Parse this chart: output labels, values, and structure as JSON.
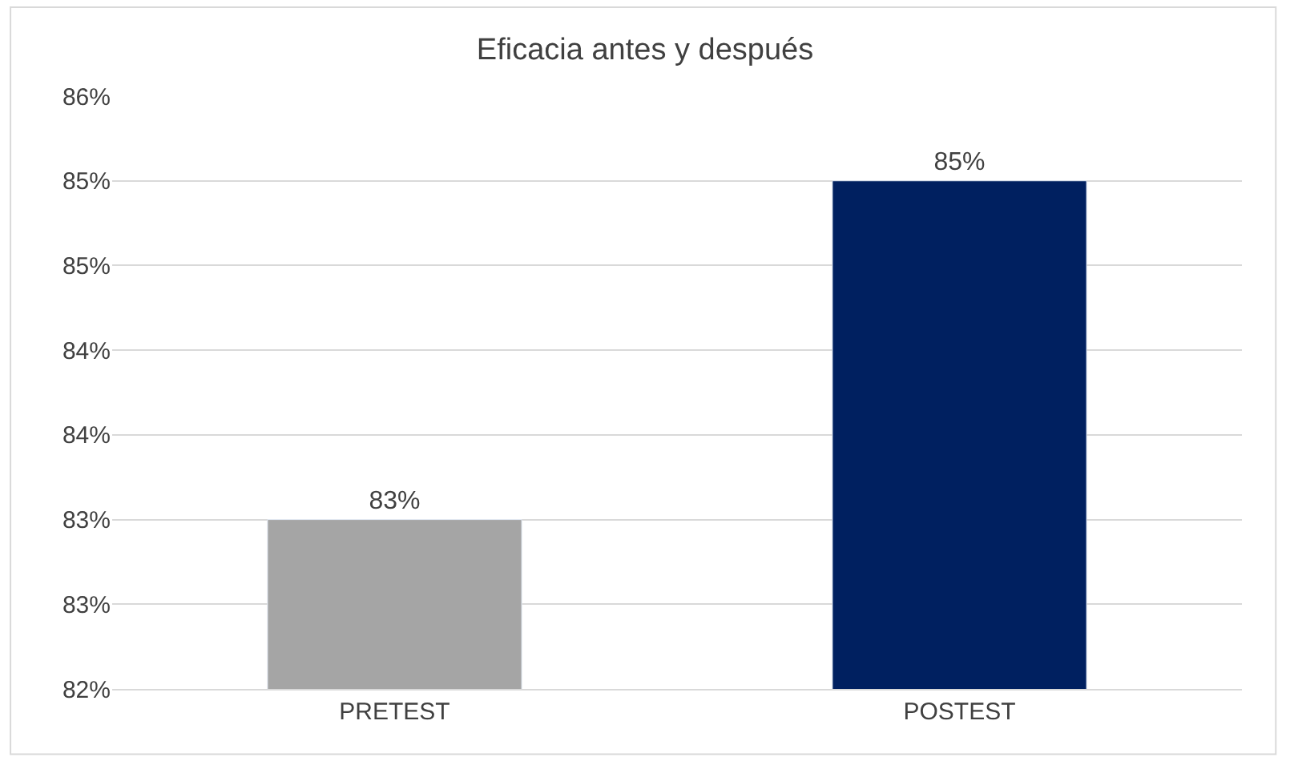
{
  "chart_data": {
    "type": "bar",
    "title": "Eficacia antes y después",
    "categories": [
      "PRETEST",
      "POSTEST"
    ],
    "values": [
      83.0,
      85.0
    ],
    "colors": [
      "#a5a5a5",
      "#002060"
    ],
    "value_labels": [
      "83%",
      "85%"
    ],
    "ylim": [
      82,
      85.5
    ],
    "yticks": [
      {
        "value": 82,
        "label": "82%"
      },
      {
        "value": 82.5,
        "label": "83%"
      },
      {
        "value": 83,
        "label": "83%"
      },
      {
        "value": 83.5,
        "label": "84%"
      },
      {
        "value": 84,
        "label": "84%"
      },
      {
        "value": 84.5,
        "label": "85%"
      },
      {
        "value": 85,
        "label": "85%"
      },
      {
        "value": 85.5,
        "label": "86%"
      }
    ],
    "grid": "y"
  }
}
